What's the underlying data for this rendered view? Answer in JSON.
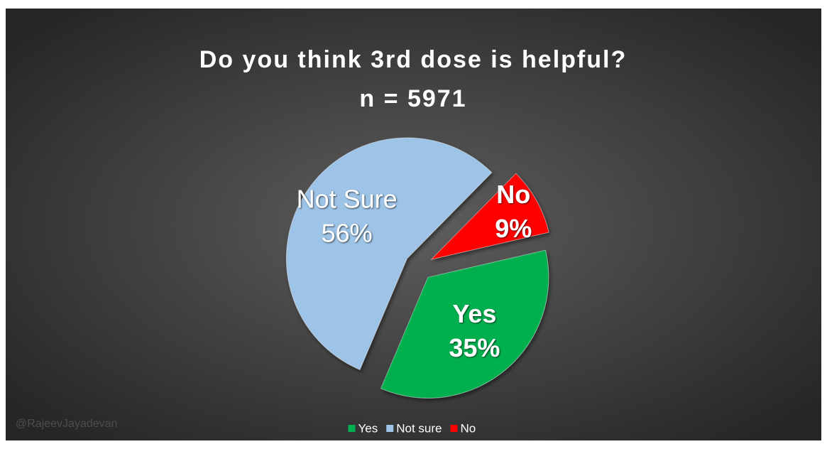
{
  "chart_data": {
    "type": "pie",
    "title": "Do you think 3rd dose is helpful?",
    "subtitle": "n = 5971",
    "categories": [
      "Yes",
      "Not sure",
      "No"
    ],
    "values": [
      35,
      56,
      9
    ],
    "value_labels": [
      "35%",
      "56%",
      "9%"
    ],
    "data_label_names": [
      "Yes",
      "Not Sure",
      "No"
    ],
    "colors": [
      "#00b050",
      "#9dc3e6",
      "#ff0000"
    ],
    "legend": "bottom",
    "watermark": "@RajeevJayadevan"
  }
}
